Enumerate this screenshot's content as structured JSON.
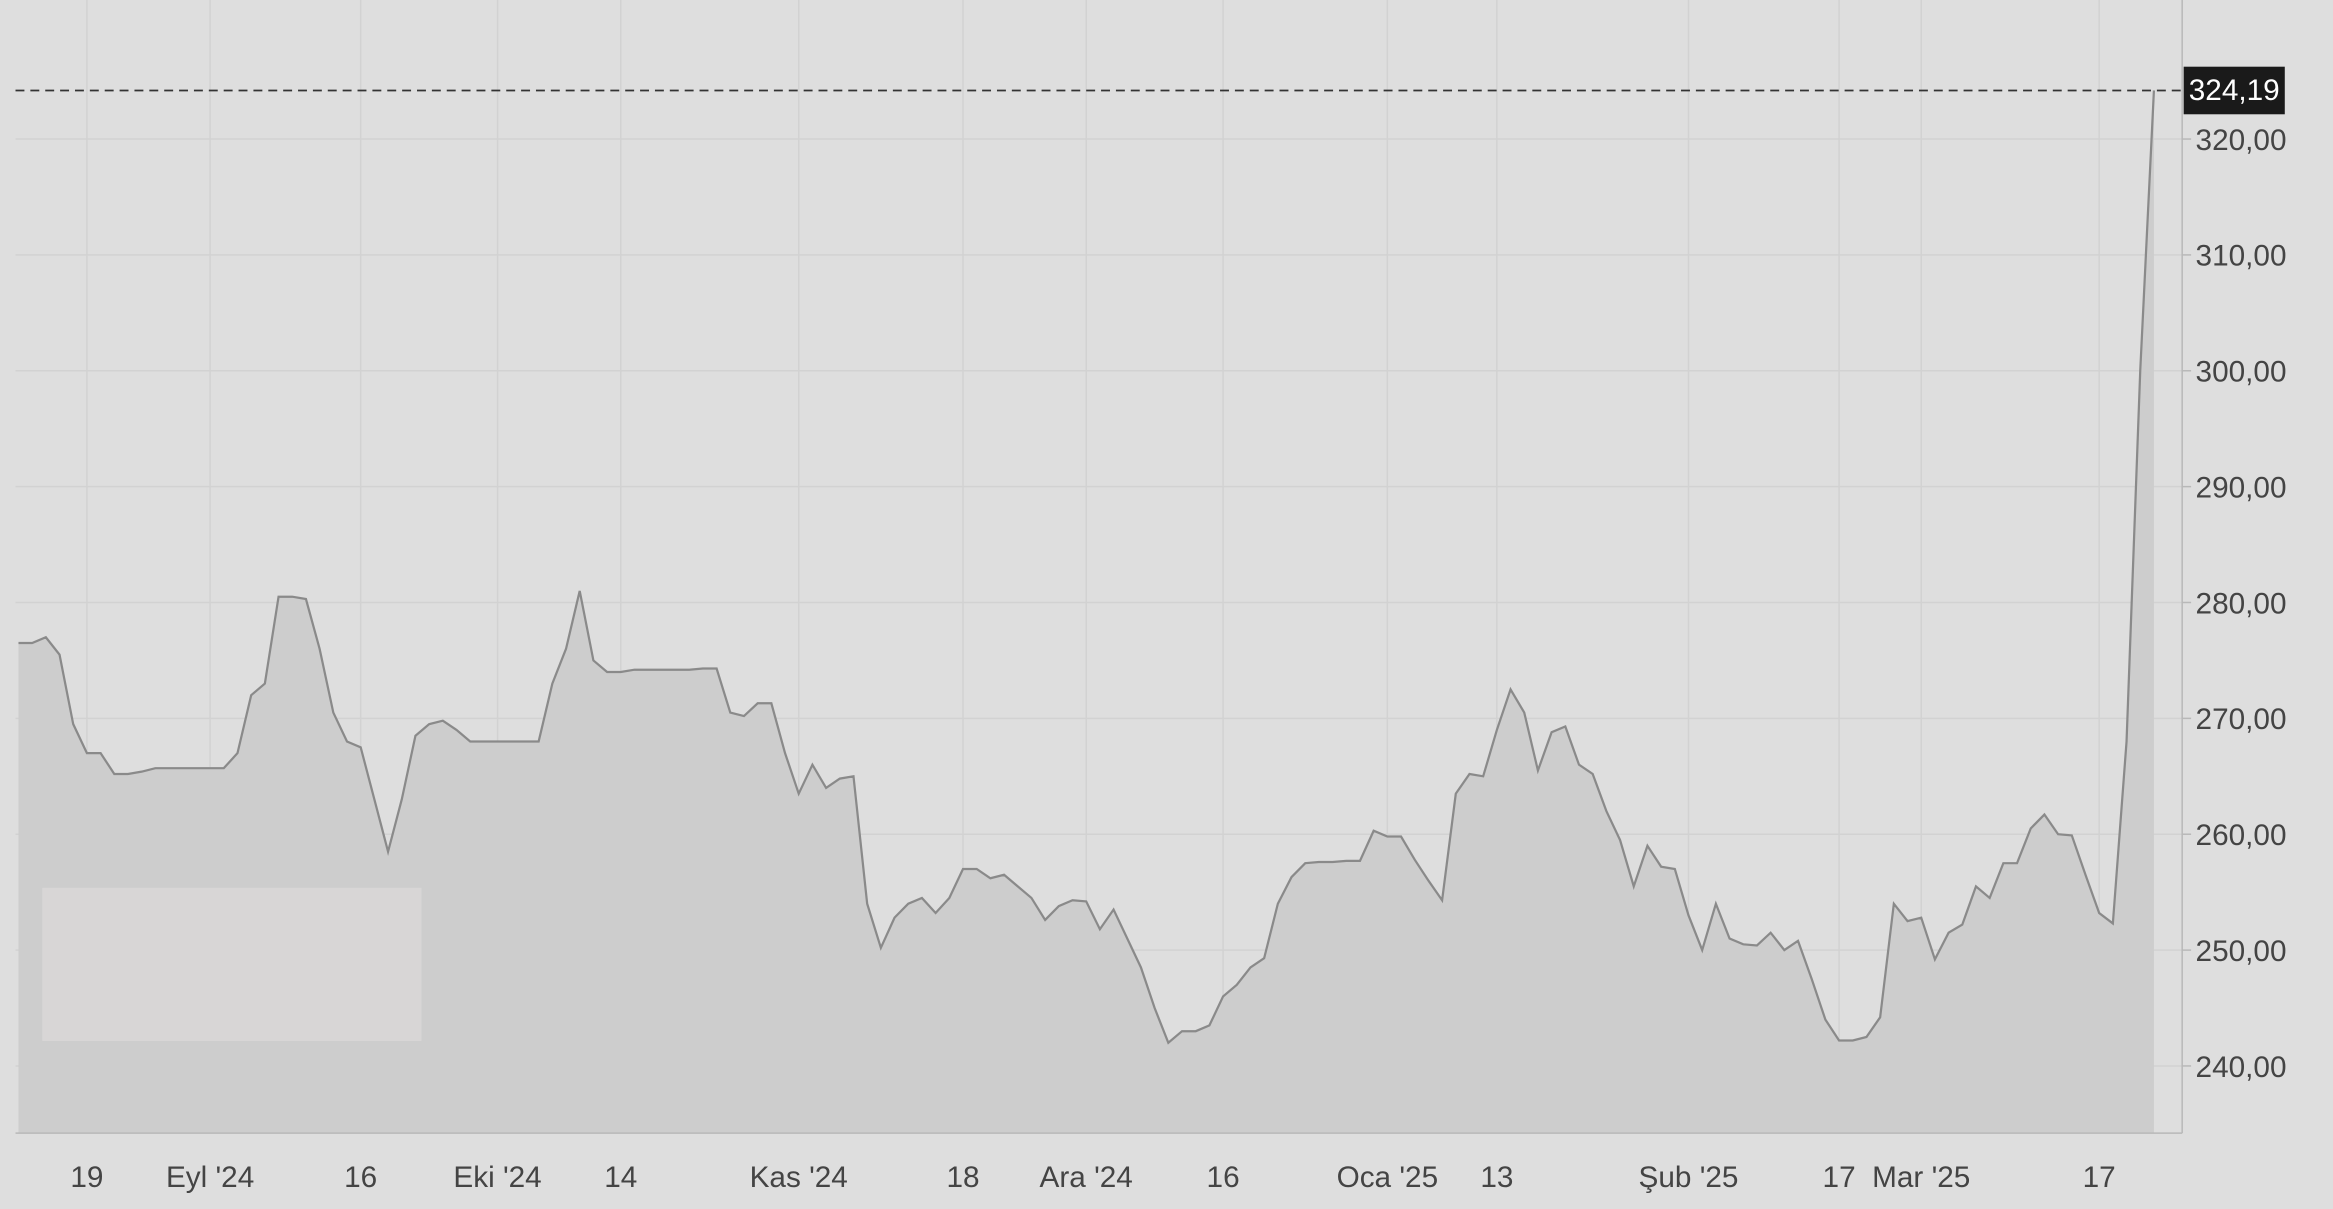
{
  "chart_data": {
    "type": "area",
    "categories": [
      null,
      null,
      null,
      null,
      null,
      "19",
      null,
      null,
      null,
      null,
      null,
      null,
      null,
      null,
      "Eyl '24",
      null,
      null,
      null,
      null,
      null,
      null,
      null,
      null,
      null,
      null,
      "16",
      null,
      null,
      null,
      null,
      null,
      null,
      null,
      null,
      null,
      "Eki '24",
      null,
      null,
      null,
      null,
      null,
      null,
      null,
      null,
      "14",
      null,
      null,
      null,
      null,
      null,
      null,
      null,
      null,
      null,
      null,
      null,
      null,
      "Kas '24",
      null,
      null,
      null,
      null,
      null,
      null,
      null,
      null,
      null,
      null,
      null,
      "18",
      null,
      null,
      null,
      null,
      null,
      null,
      null,
      null,
      "Ara '24",
      null,
      null,
      null,
      null,
      null,
      null,
      null,
      null,
      null,
      "16",
      null,
      null,
      null,
      null,
      null,
      null,
      null,
      null,
      null,
      null,
      null,
      "Oca '25",
      null,
      null,
      null,
      null,
      null,
      null,
      null,
      "13",
      null,
      null,
      null,
      null,
      null,
      null,
      null,
      null,
      null,
      null,
      null,
      null,
      null,
      "Şub '25",
      null,
      null,
      null,
      null,
      null,
      null,
      null,
      null,
      null,
      null,
      "17",
      null,
      null,
      null,
      null,
      null,
      "Mar '25",
      null,
      null,
      null,
      null,
      null,
      null,
      null,
      null,
      null,
      null,
      null,
      null,
      "17",
      null,
      null,
      null,
      null
    ],
    "values": [
      276.5,
      276.5,
      277,
      275.5,
      269.5,
      267,
      267,
      265.2,
      265.2,
      265.4,
      265.7,
      265.7,
      265.7,
      265.7,
      265.7,
      265.7,
      267,
      272,
      273,
      280.5,
      280.5,
      280.3,
      276,
      270.5,
      268,
      267.5,
      263,
      258.5,
      263,
      268.5,
      269.5,
      269.8,
      269,
      268,
      268,
      268,
      268,
      268,
      268,
      273,
      276,
      281,
      275,
      274,
      274,
      274.2,
      274.2,
      274.2,
      274.2,
      274.2,
      274.3,
      274.3,
      270.5,
      270.2,
      271.3,
      271.3,
      267,
      263.5,
      266,
      264,
      264.8,
      265,
      254,
      250.2,
      252.8,
      254,
      254.5,
      253.2,
      254.5,
      257,
      257,
      256.2,
      256.5,
      255.5,
      254.5,
      252.6,
      253.8,
      254.3,
      254.2,
      251.8,
      253.5,
      251,
      248.5,
      245,
      242,
      243,
      243,
      243.5,
      246,
      247,
      248.5,
      249.3,
      254,
      256.3,
      257.5,
      257.6,
      257.6,
      257.7,
      257.7,
      260.3,
      259.8,
      259.8,
      257.8,
      256,
      254.3,
      263.5,
      265.2,
      265,
      269,
      272.5,
      270.5,
      265.5,
      268.8,
      269.3,
      266,
      265.2,
      262,
      259.5,
      255.5,
      259,
      257.2,
      257,
      253,
      250,
      254,
      251,
      250.5,
      250.4,
      251.5,
      250,
      250.8,
      247.5,
      244,
      242.2,
      242.2,
      242.5,
      244.2,
      254,
      252.5,
      252.8,
      249.2,
      251.5,
      252.2,
      255.5,
      254.5,
      257.5,
      257.5,
      260.5,
      261.7,
      260,
      259.9,
      256.5,
      253.2,
      252.3,
      268,
      300,
      324.19
    ],
    "current_price": {
      "value": 324.19,
      "label": "324,19"
    },
    "ylim": [
      234.2,
      332
    ],
    "yticks": [
      {
        "value": 240,
        "label": "240,00"
      },
      {
        "value": 250,
        "label": "250,00"
      },
      {
        "value": 260,
        "label": "260,00"
      },
      {
        "value": 270,
        "label": "270,00"
      },
      {
        "value": 280,
        "label": "280,00"
      },
      {
        "value": 290,
        "label": "290,00"
      },
      {
        "value": 300,
        "label": "300,00"
      },
      {
        "value": 310,
        "label": "310,00"
      },
      {
        "value": 320,
        "label": "320,00"
      }
    ],
    "grid": true,
    "color": "#8a8a8a",
    "fill": "#cdcdcd"
  }
}
